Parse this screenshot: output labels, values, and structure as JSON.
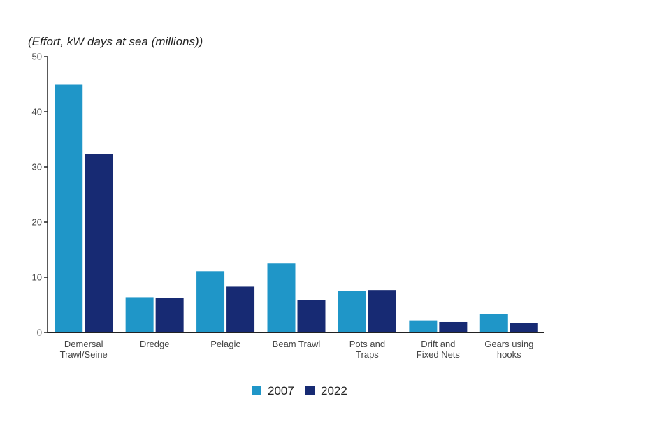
{
  "chart_data": {
    "type": "bar",
    "ylabel": "(Effort, kW days at sea (millions))",
    "xlabel": "",
    "ylim": [
      0,
      50
    ],
    "yticks": [
      "0",
      "10",
      "20",
      "30",
      "40",
      "50"
    ],
    "categories": [
      [
        "Demersal",
        "Trawl/Seine"
      ],
      [
        "Dredge"
      ],
      [
        "Pelagic"
      ],
      [
        "Beam Trawl"
      ],
      [
        "Pots and",
        "Traps"
      ],
      [
        "Drift and",
        "Fixed Nets"
      ],
      [
        "Gears using",
        "hooks"
      ]
    ],
    "series": [
      {
        "name": "2007",
        "color": "#1f96c8",
        "values": [
          45.0,
          6.4,
          11.1,
          12.5,
          7.5,
          2.2,
          3.3
        ]
      },
      {
        "name": "2022",
        "color": "#172a73",
        "values": [
          32.3,
          6.3,
          8.3,
          5.9,
          7.7,
          1.9,
          1.7
        ]
      }
    ],
    "grid": false,
    "legend_position": "bottom"
  }
}
